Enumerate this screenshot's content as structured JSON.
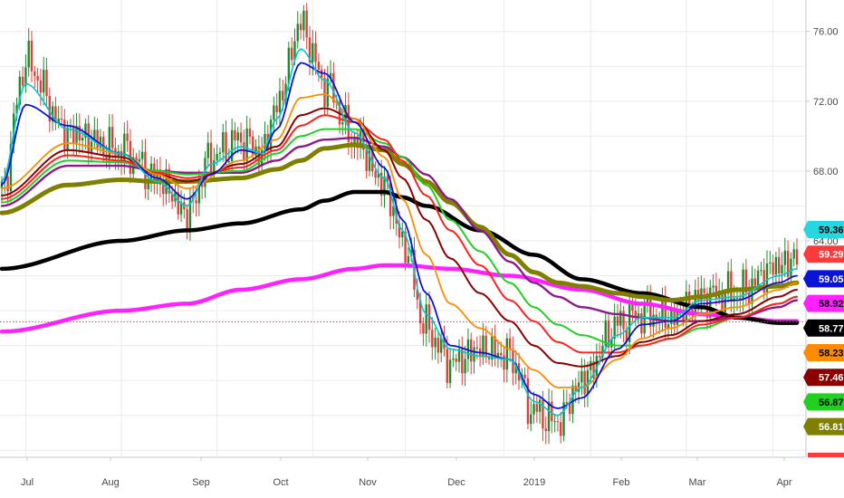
{
  "chart_data": {
    "type": "line",
    "title": "",
    "xlabel": "",
    "ylabel": "",
    "grid": true,
    "x_ticks": [
      "Jul",
      "Aug",
      "Sep",
      "Oct",
      "Nov",
      "Dec",
      "2019",
      "Feb",
      "Mar",
      "Apr"
    ],
    "y_ticks": [
      "76.00",
      "72.00",
      "68.00",
      "64.00"
    ],
    "ylim": [
      51.6,
      77.8
    ],
    "current_price": 59.36,
    "colors": {
      "candle_up": "#1e8c2e",
      "candle_down": "#e0403a",
      "price_line": "#e0403a",
      "axis_text": "#4a4a4a",
      "grid": "#ebebeb"
    },
    "candles": {
      "up_color": "#1e8c2e",
      "down_color": "#e0403a",
      "anchors_close": [
        [
          0,
          67.0
        ],
        [
          8,
          74.2
        ],
        [
          22,
          70.2
        ],
        [
          40,
          69.2
        ],
        [
          52,
          67.6
        ],
        [
          62,
          65.6
        ],
        [
          70,
          68.8
        ],
        [
          80,
          69.8
        ],
        [
          87,
          69.0
        ],
        [
          92,
          71.8
        ],
        [
          100,
          76.4
        ],
        [
          108,
          73.0
        ],
        [
          118,
          69.8
        ],
        [
          128,
          67.2
        ],
        [
          134,
          64.0
        ],
        [
          142,
          59.0
        ],
        [
          150,
          57.0
        ],
        [
          160,
          57.8
        ],
        [
          170,
          57.4
        ],
        [
          178,
          54.2
        ],
        [
          186,
          53.6
        ],
        [
          194,
          56.0
        ],
        [
          206,
          59.2
        ],
        [
          214,
          59.8
        ],
        [
          224,
          59.6
        ],
        [
          234,
          60.8
        ],
        [
          246,
          61.0
        ],
        [
          260,
          62.6
        ],
        [
          266,
          63.0
        ]
      ]
    },
    "series": [
      {
        "name": "",
        "color": "#00c8d0",
        "width": 1.6,
        "label": "",
        "anchors": [
          [
            0,
            67.4
          ],
          [
            8,
            73.0
          ],
          [
            22,
            70.4
          ],
          [
            40,
            69.0
          ],
          [
            52,
            67.4
          ],
          [
            62,
            66.0
          ],
          [
            70,
            68.4
          ],
          [
            80,
            69.4
          ],
          [
            87,
            69.0
          ],
          [
            92,
            71.0
          ],
          [
            100,
            75.0
          ],
          [
            108,
            73.2
          ],
          [
            118,
            70.2
          ],
          [
            128,
            67.6
          ],
          [
            134,
            64.6
          ],
          [
            142,
            59.8
          ],
          [
            150,
            57.8
          ],
          [
            160,
            57.4
          ],
          [
            170,
            57.2
          ],
          [
            178,
            54.8
          ],
          [
            186,
            54.0
          ],
          [
            194,
            55.6
          ],
          [
            206,
            58.6
          ],
          [
            214,
            59.6
          ],
          [
            224,
            59.6
          ],
          [
            234,
            60.6
          ],
          [
            246,
            60.8
          ],
          [
            260,
            62.0
          ],
          [
            266,
            62.4
          ]
        ]
      },
      {
        "name": "",
        "color": "#0a14d8",
        "width": 1.8,
        "label": "59.05",
        "anchors": [
          [
            0,
            67.2
          ],
          [
            8,
            71.8
          ],
          [
            22,
            70.6
          ],
          [
            40,
            69.0
          ],
          [
            52,
            67.6
          ],
          [
            62,
            66.4
          ],
          [
            70,
            67.8
          ],
          [
            80,
            69.2
          ],
          [
            87,
            69.0
          ],
          [
            92,
            70.4
          ],
          [
            100,
            74.2
          ],
          [
            108,
            73.6
          ],
          [
            118,
            70.8
          ],
          [
            128,
            68.2
          ],
          [
            134,
            65.2
          ],
          [
            142,
            61.0
          ],
          [
            150,
            58.0
          ],
          [
            160,
            57.6
          ],
          [
            170,
            57.2
          ],
          [
            178,
            55.2
          ],
          [
            186,
            54.4
          ],
          [
            194,
            55.0
          ],
          [
            206,
            57.8
          ],
          [
            214,
            59.2
          ],
          [
            224,
            59.4
          ],
          [
            234,
            60.4
          ],
          [
            246,
            60.6
          ],
          [
            260,
            61.6
          ],
          [
            266,
            62.0
          ]
        ]
      },
      {
        "name": "",
        "color": "#ff8c00",
        "width": 1.8,
        "label": "58.23",
        "anchors": [
          [
            0,
            67.0
          ],
          [
            22,
            69.6
          ],
          [
            40,
            69.0
          ],
          [
            52,
            67.8
          ],
          [
            62,
            67.0
          ],
          [
            80,
            68.6
          ],
          [
            92,
            69.8
          ],
          [
            100,
            72.2
          ],
          [
            108,
            72.4
          ],
          [
            118,
            71.0
          ],
          [
            128,
            68.8
          ],
          [
            134,
            66.4
          ],
          [
            142,
            63.2
          ],
          [
            150,
            60.4
          ],
          [
            160,
            59.0
          ],
          [
            170,
            57.8
          ],
          [
            178,
            56.6
          ],
          [
            186,
            55.6
          ],
          [
            194,
            55.6
          ],
          [
            206,
            57.2
          ],
          [
            214,
            58.4
          ],
          [
            224,
            59.0
          ],
          [
            234,
            59.8
          ],
          [
            246,
            60.2
          ],
          [
            260,
            61.2
          ],
          [
            266,
            61.6
          ]
        ]
      },
      {
        "name": "",
        "color": "#8b0000",
        "width": 2.0,
        "label": "57.46",
        "anchors": [
          [
            0,
            66.6
          ],
          [
            22,
            69.2
          ],
          [
            40,
            68.8
          ],
          [
            52,
            67.8
          ],
          [
            62,
            67.4
          ],
          [
            80,
            68.4
          ],
          [
            92,
            69.4
          ],
          [
            100,
            71.2
          ],
          [
            108,
            71.6
          ],
          [
            118,
            71.0
          ],
          [
            128,
            69.2
          ],
          [
            134,
            67.6
          ],
          [
            142,
            65.2
          ],
          [
            150,
            63.0
          ],
          [
            160,
            61.0
          ],
          [
            170,
            59.4
          ],
          [
            178,
            58.0
          ],
          [
            186,
            57.0
          ],
          [
            194,
            56.8
          ],
          [
            206,
            57.4
          ],
          [
            214,
            58.2
          ],
          [
            224,
            58.6
          ],
          [
            234,
            59.4
          ],
          [
            246,
            59.8
          ],
          [
            260,
            60.8
          ],
          [
            266,
            61.2
          ]
        ]
      },
      {
        "name": "",
        "color": "#ff2020",
        "width": 2.0,
        "label": "",
        "anchors": [
          [
            0,
            66.4
          ],
          [
            22,
            68.9
          ],
          [
            40,
            68.6
          ],
          [
            52,
            67.9
          ],
          [
            62,
            67.6
          ],
          [
            80,
            68.2
          ],
          [
            92,
            69.2
          ],
          [
            100,
            70.6
          ],
          [
            108,
            71.2
          ],
          [
            118,
            70.8
          ],
          [
            128,
            69.8
          ],
          [
            134,
            68.6
          ],
          [
            142,
            66.6
          ],
          [
            150,
            64.6
          ],
          [
            160,
            62.6
          ],
          [
            170,
            60.6
          ],
          [
            178,
            59.4
          ],
          [
            186,
            58.2
          ],
          [
            194,
            57.6
          ],
          [
            206,
            57.6
          ],
          [
            214,
            58.0
          ],
          [
            224,
            58.4
          ],
          [
            234,
            59.2
          ],
          [
            246,
            59.6
          ],
          [
            260,
            60.4
          ],
          [
            266,
            60.8
          ]
        ]
      },
      {
        "name": "",
        "color": "#22d022",
        "width": 2.0,
        "label": "56.87",
        "anchors": [
          [
            0,
            66.2
          ],
          [
            22,
            68.6
          ],
          [
            40,
            68.5
          ],
          [
            52,
            68.0
          ],
          [
            62,
            67.8
          ],
          [
            80,
            68.0
          ],
          [
            92,
            69.0
          ],
          [
            100,
            70.0
          ],
          [
            108,
            70.4
          ],
          [
            118,
            70.4
          ],
          [
            128,
            69.6
          ],
          [
            134,
            68.8
          ],
          [
            142,
            67.2
          ],
          [
            150,
            65.2
          ],
          [
            160,
            63.4
          ],
          [
            170,
            61.6
          ],
          [
            178,
            60.2
          ],
          [
            186,
            59.2
          ],
          [
            194,
            58.6
          ],
          [
            206,
            58.0
          ],
          [
            214,
            58.0
          ],
          [
            224,
            58.4
          ],
          [
            234,
            59.0
          ],
          [
            246,
            59.6
          ],
          [
            260,
            60.4
          ],
          [
            266,
            60.8
          ]
        ]
      },
      {
        "name": "",
        "color": "#8b1a8b",
        "width": 2.4,
        "label": "",
        "anchors": [
          [
            0,
            66.0
          ],
          [
            22,
            68.3
          ],
          [
            40,
            68.3
          ],
          [
            52,
            68.0
          ],
          [
            62,
            67.9
          ],
          [
            80,
            67.9
          ],
          [
            92,
            68.6
          ],
          [
            100,
            69.4
          ],
          [
            108,
            69.8
          ],
          [
            118,
            69.9
          ],
          [
            128,
            69.4
          ],
          [
            134,
            68.8
          ],
          [
            142,
            67.8
          ],
          [
            150,
            66.4
          ],
          [
            160,
            64.6
          ],
          [
            170,
            62.8
          ],
          [
            178,
            61.6
          ],
          [
            186,
            60.8
          ],
          [
            194,
            60.2
          ],
          [
            206,
            59.8
          ],
          [
            214,
            59.6
          ],
          [
            224,
            59.4
          ],
          [
            234,
            59.4
          ],
          [
            246,
            59.6
          ],
          [
            260,
            60.2
          ],
          [
            266,
            60.6
          ]
        ]
      },
      {
        "name": "",
        "color": "#808000",
        "width": 5.0,
        "label": "56.81",
        "anchors": [
          [
            0,
            65.6
          ],
          [
            22,
            67.2
          ],
          [
            40,
            67.5
          ],
          [
            52,
            67.4
          ],
          [
            62,
            67.4
          ],
          [
            80,
            67.6
          ],
          [
            92,
            68.1
          ],
          [
            100,
            68.6
          ],
          [
            108,
            69.3
          ],
          [
            118,
            69.5
          ],
          [
            128,
            69.2
          ],
          [
            134,
            68.4
          ],
          [
            142,
            67.4
          ],
          [
            150,
            66.2
          ],
          [
            160,
            64.8
          ],
          [
            170,
            63.2
          ],
          [
            178,
            62.2
          ],
          [
            186,
            61.6
          ],
          [
            194,
            61.4
          ],
          [
            206,
            61.0
          ],
          [
            214,
            60.8
          ],
          [
            224,
            60.6
          ],
          [
            234,
            60.8
          ],
          [
            246,
            61.2
          ],
          [
            260,
            61.4
          ],
          [
            266,
            61.6
          ]
        ]
      },
      {
        "name": "",
        "color": "#000000",
        "width": 4.5,
        "label": "58.77",
        "anchors": [
          [
            0,
            62.4
          ],
          [
            40,
            64.0
          ],
          [
            62,
            64.6
          ],
          [
            80,
            65.0
          ],
          [
            100,
            65.8
          ],
          [
            108,
            66.3
          ],
          [
            118,
            66.8
          ],
          [
            128,
            66.8
          ],
          [
            134,
            66.5
          ],
          [
            142,
            66.0
          ],
          [
            160,
            64.6
          ],
          [
            178,
            63.2
          ],
          [
            194,
            61.8
          ],
          [
            214,
            61.0
          ],
          [
            234,
            60.2
          ],
          [
            246,
            59.6
          ],
          [
            260,
            59.3
          ],
          [
            266,
            59.3
          ]
        ]
      },
      {
        "name": "",
        "color": "#ff22ff",
        "width": 4.5,
        "label": "58.92",
        "anchors": [
          [
            0,
            58.8
          ],
          [
            40,
            60.0
          ],
          [
            62,
            60.4
          ],
          [
            80,
            61.2
          ],
          [
            100,
            61.8
          ],
          [
            118,
            62.4
          ],
          [
            128,
            62.6
          ],
          [
            134,
            62.6
          ],
          [
            150,
            62.4
          ],
          [
            170,
            62.0
          ],
          [
            194,
            61.2
          ],
          [
            214,
            60.4
          ],
          [
            234,
            59.8
          ],
          [
            246,
            59.6
          ],
          [
            260,
            59.4
          ],
          [
            266,
            59.4
          ]
        ]
      }
    ],
    "badges": [
      {
        "label": "59.36",
        "bg": "#26d7e0",
        "fg": "#000000"
      },
      {
        "label": "59.29",
        "bg": "#ff3a3a",
        "fg": "#ffffff"
      },
      {
        "label": "59.05",
        "bg": "#0a14d8",
        "fg": "#ffffff"
      },
      {
        "label": "58.92",
        "bg": "#ff22ff",
        "fg": "#000000"
      },
      {
        "label": "58.77",
        "bg": "#000000",
        "fg": "#ffffff"
      },
      {
        "label": "58.23",
        "bg": "#ff8c00",
        "fg": "#000000"
      },
      {
        "label": "57.46",
        "bg": "#8b0000",
        "fg": "#ffffff"
      },
      {
        "label": "56.87",
        "bg": "#22d022",
        "fg": "#000000"
      },
      {
        "label": "56.81",
        "bg": "#808000",
        "fg": "#ffffff"
      }
    ]
  }
}
